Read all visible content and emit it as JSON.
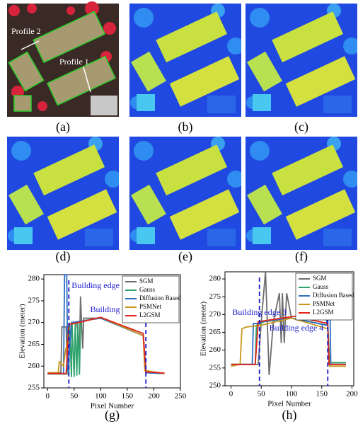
{
  "panels": [
    {
      "caption": "(a)"
    },
    {
      "caption": "(b)"
    },
    {
      "caption": "(c)"
    },
    {
      "caption": "(d)"
    },
    {
      "caption": "(e)"
    },
    {
      "caption": "(f)"
    }
  ],
  "profile_labels": [
    "Profile 2",
    "Profile 1"
  ],
  "chart_data": [
    {
      "type": "line",
      "caption": "(g)",
      "xlabel": "Pixel Number",
      "ylabel": "Elevation (meter)",
      "xlim": [
        -7,
        250
      ],
      "ylim": [
        255,
        281
      ],
      "xticks": [
        0,
        50,
        100,
        150,
        200,
        250
      ],
      "yticks": [
        255,
        260,
        265,
        270,
        275,
        280
      ],
      "annotations": [
        {
          "text": "Building edge 1",
          "x": 40
        },
        {
          "text": "Building edge 2",
          "x": 185
        }
      ],
      "series": [
        {
          "name": "SGM",
          "color": "#6e6e6e",
          "x": [
            0,
            25,
            27,
            35,
            37,
            45,
            55,
            60,
            62,
            66,
            68,
            100,
            180,
            185,
            220
          ],
          "values": [
            258.5,
            258.5,
            269,
            269,
            258.5,
            270,
            270,
            264,
            276,
            264,
            271,
            271,
            267.5,
            258.5,
            258.3
          ]
        },
        {
          "name": "Gauss",
          "color": "#2ea36b",
          "x": [
            0,
            40,
            41,
            45,
            46,
            50,
            52,
            55,
            57,
            60,
            62,
            70,
            100,
            180,
            185,
            220
          ],
          "values": [
            258.2,
            258.2,
            270,
            257.5,
            270,
            257.5,
            270,
            257.8,
            270,
            258,
            270,
            270.5,
            271,
            267,
            258.5,
            258.3
          ]
        },
        {
          "name": "Diffusion Based",
          "color": "#2f6fc4",
          "x": [
            0,
            30,
            32,
            36,
            38,
            45,
            100,
            180,
            185,
            220
          ],
          "values": [
            258.3,
            258.3,
            281,
            281,
            258.5,
            270,
            271,
            267,
            258.5,
            258.3
          ]
        },
        {
          "name": "PSMNet",
          "color": "#c8961a",
          "x": [
            0,
            20,
            22,
            30,
            33,
            38,
            40,
            100,
            180,
            183,
            220
          ],
          "values": [
            258.5,
            258.5,
            261,
            260,
            263,
            266,
            269.5,
            271.2,
            267,
            259,
            258.3
          ]
        },
        {
          "name": "L2GSM",
          "color": "#e3221c",
          "x": [
            0,
            35,
            40,
            100,
            180,
            185,
            220
          ],
          "values": [
            258.3,
            258.3,
            269.5,
            271.2,
            267.5,
            258.7,
            258.4
          ]
        }
      ]
    },
    {
      "type": "line",
      "caption": "(h)",
      "xlabel": "Pixel Number",
      "ylabel": "Elevation (meter)",
      "xlim": [
        -10,
        203
      ],
      "ylim": [
        250,
        282
      ],
      "xticks": [
        0,
        50,
        100,
        150,
        200
      ],
      "yticks": [
        250,
        255,
        260,
        265,
        270,
        275,
        280
      ],
      "annotations": [
        {
          "text": "Building edge 3",
          "x": 47
        },
        {
          "text": "Building edge 4",
          "x": 160
        }
      ],
      "series": [
        {
          "name": "SGM",
          "color": "#6e6e6e",
          "x": [
            0,
            45,
            50,
            57,
            60,
            63,
            70,
            80,
            83,
            85,
            88,
            92,
            100,
            160,
            163,
            190
          ],
          "values": [
            256,
            256,
            268,
            282,
            268,
            253,
            268,
            276,
            262,
            276,
            262,
            276,
            269,
            267,
            256.5,
            256.5
          ]
        },
        {
          "name": "Gauss",
          "color": "#2ea36b",
          "x": [
            0,
            40,
            42,
            55,
            100,
            160,
            163,
            190
          ],
          "values": [
            256,
            256,
            267,
            268,
            269,
            267,
            256.5,
            256.5
          ]
        },
        {
          "name": "Diffusion Based",
          "color": "#2f6fc4",
          "x": [
            0,
            35,
            37,
            45,
            50,
            100,
            158,
            160,
            163,
            165,
            190
          ],
          "values": [
            256,
            256,
            267.5,
            267.5,
            268,
            269,
            267,
            280,
            280,
            256,
            256
          ]
        },
        {
          "name": "PSMNet",
          "color": "#c8961a",
          "x": [
            0,
            15,
            18,
            25,
            50,
            100,
            160,
            163,
            190
          ],
          "values": [
            255.5,
            256,
            266,
            266.5,
            267,
            269,
            266,
            255.5,
            255.5
          ]
        },
        {
          "name": "L2GSM",
          "color": "#e3221c",
          "x": [
            0,
            40,
            45,
            105,
            160,
            162,
            190
          ],
          "values": [
            256,
            256,
            268,
            269.5,
            267.5,
            256,
            256
          ]
        }
      ]
    }
  ]
}
